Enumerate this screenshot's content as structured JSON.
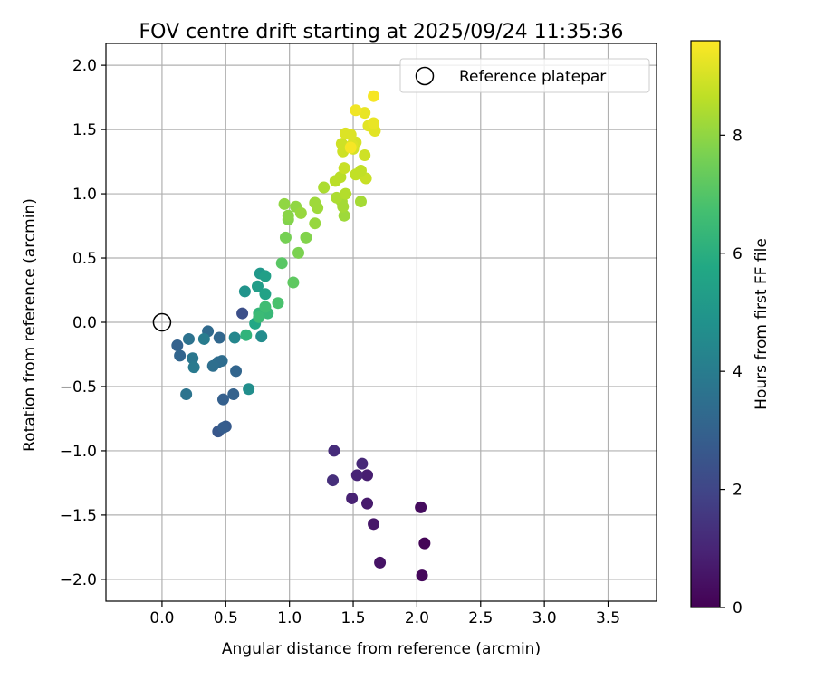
{
  "chart_data": {
    "type": "scatter",
    "title": "FOV centre drift starting at 2025/09/24 11:35:36",
    "xlabel": "Angular distance from reference (arcmin)",
    "ylabel": "Rotation from reference (arcmin)",
    "xlim": [
      -0.44,
      3.88
    ],
    "ylim": [
      -2.17,
      2.17
    ],
    "xticks": [
      0.0,
      0.5,
      1.0,
      1.5,
      2.0,
      2.5,
      3.0,
      3.5
    ],
    "xtick_labels": [
      "0.0",
      "0.5",
      "1.0",
      "1.5",
      "2.0",
      "2.5",
      "3.0",
      "3.5"
    ],
    "yticks": [
      2.0,
      1.5,
      1.0,
      0.5,
      0.0,
      -0.5,
      -1.0,
      -1.5,
      -2.0
    ],
    "ytick_labels": [
      "2.0",
      "1.5",
      "1.0",
      "0.5",
      "0.0",
      "−0.5",
      "−1.0",
      "−1.5",
      "−2.0"
    ],
    "grid": true,
    "legend": {
      "position": "top-right",
      "label": "Reference platepar"
    },
    "reference_point": {
      "x": 0.0,
      "y": 0.0
    },
    "colorbar": {
      "label": "Hours from first FF file",
      "colormap": "viridis",
      "range": [
        0,
        9.6
      ],
      "ticks": [
        0,
        2,
        4,
        6,
        8
      ],
      "tick_labels": [
        "0",
        "2",
        "4",
        "6",
        "8"
      ]
    },
    "series": [
      {
        "name": "FOV centre drift",
        "points": [
          {
            "x": 2.06,
            "y": -1.72,
            "t": 0.1
          },
          {
            "x": 2.04,
            "y": -1.97,
            "t": 0.2
          },
          {
            "x": 2.03,
            "y": -1.44,
            "t": 0.3
          },
          {
            "x": 1.71,
            "y": -1.87,
            "t": 0.5
          },
          {
            "x": 1.66,
            "y": -1.57,
            "t": 0.6
          },
          {
            "x": 1.61,
            "y": -1.41,
            "t": 0.7
          },
          {
            "x": 1.61,
            "y": -1.19,
            "t": 0.8
          },
          {
            "x": 1.49,
            "y": -1.37,
            "t": 0.9
          },
          {
            "x": 1.53,
            "y": -1.19,
            "t": 1.0
          },
          {
            "x": 1.57,
            "y": -1.1,
            "t": 1.1
          },
          {
            "x": 1.35,
            "y": -1.0,
            "t": 1.2
          },
          {
            "x": 1.34,
            "y": -1.23,
            "t": 1.3
          },
          {
            "x": 0.63,
            "y": 0.07,
            "t": 2.3
          },
          {
            "x": 0.44,
            "y": -0.85,
            "t": 2.6
          },
          {
            "x": 0.5,
            "y": -0.81,
            "t": 2.7
          },
          {
            "x": 0.48,
            "y": -0.82,
            "t": 2.8
          },
          {
            "x": 0.48,
            "y": -0.6,
            "t": 2.9
          },
          {
            "x": 0.56,
            "y": -0.56,
            "t": 3.0
          },
          {
            "x": 0.58,
            "y": -0.38,
            "t": 3.1
          },
          {
            "x": 0.12,
            "y": -0.18,
            "t": 3.0
          },
          {
            "x": 0.14,
            "y": -0.26,
            "t": 3.1
          },
          {
            "x": 0.45,
            "y": -0.12,
            "t": 3.2
          },
          {
            "x": 0.36,
            "y": -0.07,
            "t": 3.3
          },
          {
            "x": 0.47,
            "y": -0.3,
            "t": 3.4
          },
          {
            "x": 0.44,
            "y": -0.31,
            "t": 3.4
          },
          {
            "x": 0.4,
            "y": -0.34,
            "t": 3.5
          },
          {
            "x": 0.21,
            "y": -0.13,
            "t": 3.6
          },
          {
            "x": 0.19,
            "y": -0.56,
            "t": 3.7
          },
          {
            "x": 0.24,
            "y": -0.28,
            "t": 3.8
          },
          {
            "x": 0.25,
            "y": -0.35,
            "t": 3.9
          },
          {
            "x": 0.33,
            "y": -0.13,
            "t": 4.0
          },
          {
            "x": 0.57,
            "y": -0.12,
            "t": 4.4
          },
          {
            "x": 0.68,
            "y": -0.52,
            "t": 4.7
          },
          {
            "x": 0.78,
            "y": -0.11,
            "t": 4.6
          },
          {
            "x": 0.65,
            "y": 0.24,
            "t": 4.9
          },
          {
            "x": 0.77,
            "y": 0.38,
            "t": 5.1
          },
          {
            "x": 0.75,
            "y": 0.28,
            "t": 5.3
          },
          {
            "x": 0.81,
            "y": 0.36,
            "t": 5.4
          },
          {
            "x": 0.81,
            "y": 0.22,
            "t": 5.5
          },
          {
            "x": 0.73,
            "y": -0.01,
            "t": 5.7
          },
          {
            "x": 0.66,
            "y": -0.1,
            "t": 6.2
          },
          {
            "x": 0.76,
            "y": 0.07,
            "t": 6.3
          },
          {
            "x": 0.83,
            "y": 0.07,
            "t": 6.4
          },
          {
            "x": 0.76,
            "y": 0.04,
            "t": 6.5
          },
          {
            "x": 0.81,
            "y": 0.12,
            "t": 6.6
          },
          {
            "x": 0.91,
            "y": 0.15,
            "t": 6.8
          },
          {
            "x": 0.94,
            "y": 0.46,
            "t": 7.1
          },
          {
            "x": 1.03,
            "y": 0.31,
            "t": 7.2
          },
          {
            "x": 0.97,
            "y": 0.66,
            "t": 7.6
          },
          {
            "x": 1.07,
            "y": 0.54,
            "t": 7.7
          },
          {
            "x": 1.13,
            "y": 0.66,
            "t": 7.8
          },
          {
            "x": 0.99,
            "y": 0.8,
            "t": 7.8
          },
          {
            "x": 0.99,
            "y": 0.83,
            "t": 7.9
          },
          {
            "x": 0.96,
            "y": 0.92,
            "t": 8.0
          },
          {
            "x": 1.05,
            "y": 0.9,
            "t": 8.0
          },
          {
            "x": 1.09,
            "y": 0.85,
            "t": 8.1
          },
          {
            "x": 1.2,
            "y": 0.77,
            "t": 8.1
          },
          {
            "x": 1.2,
            "y": 0.93,
            "t": 8.2
          },
          {
            "x": 1.22,
            "y": 0.89,
            "t": 8.2
          },
          {
            "x": 1.43,
            "y": 0.83,
            "t": 8.2
          },
          {
            "x": 1.42,
            "y": 0.9,
            "t": 8.3
          },
          {
            "x": 1.41,
            "y": 0.94,
            "t": 8.3
          },
          {
            "x": 1.56,
            "y": 0.94,
            "t": 8.3
          },
          {
            "x": 1.27,
            "y": 1.05,
            "t": 8.4
          },
          {
            "x": 1.37,
            "y": 0.97,
            "t": 8.4
          },
          {
            "x": 1.44,
            "y": 1.0,
            "t": 8.5
          },
          {
            "x": 1.36,
            "y": 1.1,
            "t": 8.6
          },
          {
            "x": 1.4,
            "y": 1.13,
            "t": 8.6
          },
          {
            "x": 1.52,
            "y": 1.15,
            "t": 8.7
          },
          {
            "x": 1.6,
            "y": 1.12,
            "t": 8.8
          },
          {
            "x": 1.56,
            "y": 1.18,
            "t": 8.7
          },
          {
            "x": 1.43,
            "y": 1.2,
            "t": 8.8
          },
          {
            "x": 1.59,
            "y": 1.3,
            "t": 8.9
          },
          {
            "x": 1.42,
            "y": 1.33,
            "t": 8.9
          },
          {
            "x": 1.41,
            "y": 1.39,
            "t": 8.9
          },
          {
            "x": 1.5,
            "y": 1.35,
            "t": 9.0
          },
          {
            "x": 1.52,
            "y": 1.4,
            "t": 9.0
          },
          {
            "x": 1.44,
            "y": 1.47,
            "t": 9.1
          },
          {
            "x": 1.48,
            "y": 1.46,
            "t": 9.1
          },
          {
            "x": 1.49,
            "y": 1.38,
            "t": 9.1
          },
          {
            "x": 1.67,
            "y": 1.49,
            "t": 9.2
          },
          {
            "x": 1.62,
            "y": 1.53,
            "t": 9.2
          },
          {
            "x": 1.66,
            "y": 1.55,
            "t": 9.3
          },
          {
            "x": 1.59,
            "y": 1.63,
            "t": 9.3
          },
          {
            "x": 1.52,
            "y": 1.65,
            "t": 9.4
          },
          {
            "x": 1.66,
            "y": 1.76,
            "t": 9.5
          },
          {
            "x": 1.48,
            "y": 1.36,
            "t": 9.5
          }
        ]
      }
    ]
  }
}
